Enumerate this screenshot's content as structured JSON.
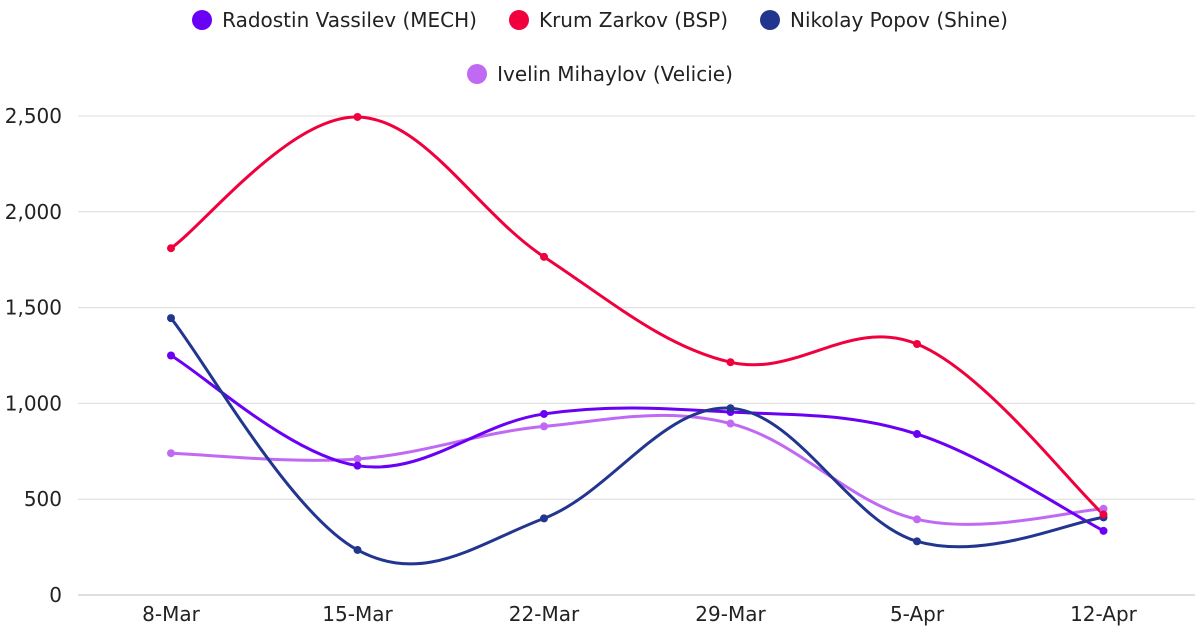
{
  "chart_data": {
    "type": "line",
    "categories": [
      "8-Mar",
      "15-Mar",
      "22-Mar",
      "29-Mar",
      "5-Apr",
      "12-Apr"
    ],
    "ylim": [
      0,
      2500
    ],
    "yticks": [
      0,
      500,
      1000,
      1500,
      2000,
      2500
    ],
    "ytick_labels": [
      "0",
      "500",
      "1,000",
      "1,500",
      "2,000",
      "2,500"
    ],
    "grid": true,
    "legend_position": "top",
    "series": [
      {
        "name": "Radostin Vassilev (MECH)",
        "color": "#6a00f4",
        "values": [
          1250,
          675,
          945,
          955,
          840,
          335
        ]
      },
      {
        "name": "Krum Zarkov (BSP)",
        "color": "#f0003c",
        "values": [
          1810,
          2495,
          1765,
          1215,
          1310,
          420
        ]
      },
      {
        "name": "Nikolay Popov (Shine)",
        "color": "#22358f",
        "values": [
          1445,
          235,
          400,
          975,
          280,
          405
        ]
      },
      {
        "name": "Ivelin Mihaylov (Velicie)",
        "color": "#c06af4",
        "values": [
          740,
          710,
          880,
          895,
          395,
          450
        ]
      }
    ]
  }
}
